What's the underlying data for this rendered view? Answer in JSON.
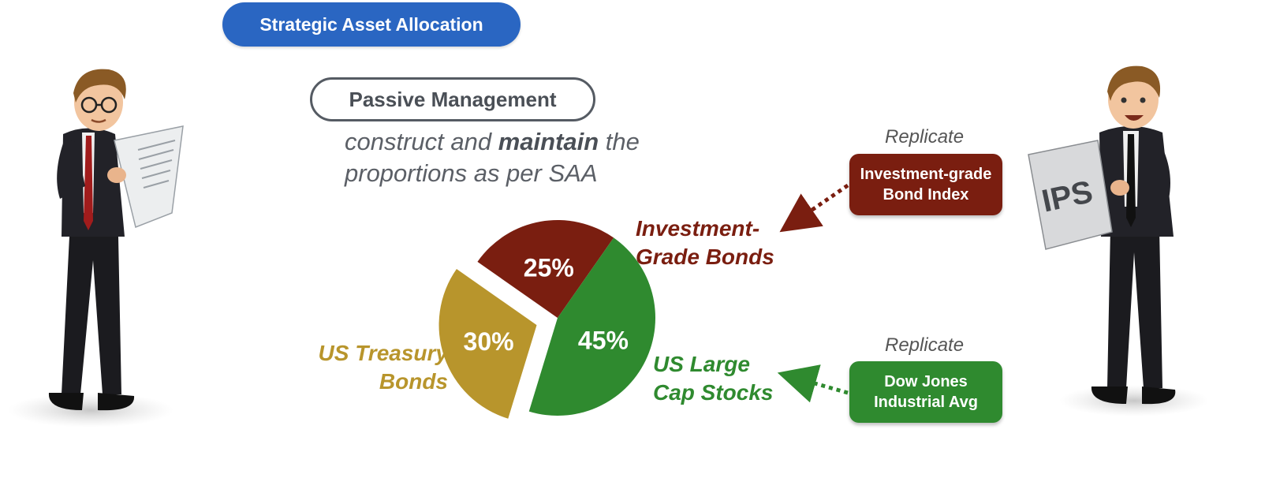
{
  "header": {
    "title": "Strategic Asset Allocation"
  },
  "strategy": {
    "label": "Passive Management",
    "desc_pre": "construct and ",
    "desc_bold": "maintain",
    "desc_post": " the proportions as per SAA"
  },
  "benchmarks": {
    "bonds": {
      "caption": "Replicate",
      "line1": "Investment-grade",
      "line2": "Bond Index"
    },
    "stocks": {
      "caption": "Replicate",
      "line1": "Dow Jones",
      "line2": "Industrial Avg"
    }
  },
  "labels": {
    "bonds_line1": "Investment-",
    "bonds_line2": "Grade Bonds",
    "treasury_line1": "US Treasury",
    "treasury_line2": "Bonds",
    "stocks_line1": "US Large",
    "stocks_line2": "Cap Stocks"
  },
  "figures": {
    "ips_label": "IPS"
  },
  "colors": {
    "bonds": "#7a1e10",
    "treasury": "#b8952c",
    "stocks": "#2f8a2f",
    "title_pill": "#2a66c2"
  },
  "chart_data": {
    "type": "pie",
    "slices": [
      {
        "label": "Investment-Grade Bonds",
        "value": 25,
        "display": "25%",
        "color": "#7a1e10"
      },
      {
        "label": "US Large Cap Stocks",
        "value": 45,
        "display": "45%",
        "color": "#2f8a2f"
      },
      {
        "label": "US Treasury Bonds",
        "value": 30,
        "display": "30%",
        "color": "#b8952c",
        "exploded": true
      }
    ]
  }
}
